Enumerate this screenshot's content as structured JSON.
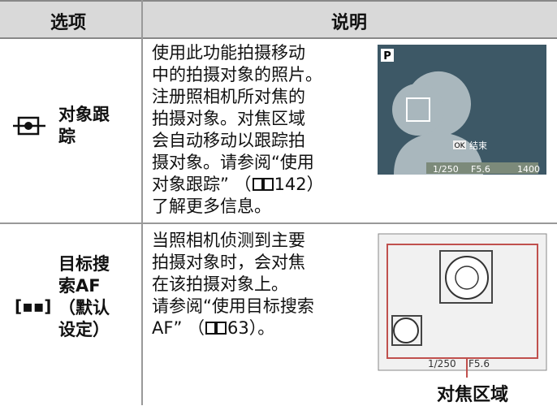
{
  "header": {
    "option": "选项",
    "description": "说明"
  },
  "rows": [
    {
      "label_lines": [
        "对象跟",
        "踪"
      ],
      "description": {
        "lines": [
          "使用此功能拍摄移动",
          "中的拍摄对象的照片。",
          "注册照相机所对焦的",
          "拍摄对象。对焦区域",
          "会自动移动以跟踪拍",
          "摄对象。请参阅“使用"
        ],
        "ref": {
          "before": "对象跟踪” （",
          "after": "142）"
        },
        "last": "了解更多信息。"
      },
      "screen": {
        "mode": "P",
        "ok": "OK",
        "end": "结束",
        "shutter": "1/250",
        "aperture": "F5.6",
        "shots": "1400"
      }
    },
    {
      "label_lines": [
        "目标搜",
        "索AF",
        "（默认",
        "设定）"
      ],
      "description": {
        "lines": [
          "当照相机侦测到主要",
          "拍摄对象时，会对焦",
          "在该拍摄对象上。",
          "请参阅“使用目标搜索"
        ],
        "ref": {
          "before": "AF” （",
          "after": "63）。"
        }
      },
      "screen": {
        "shutter": "1/250",
        "aperture": "F5.6"
      },
      "caption": "对焦区域"
    }
  ]
}
